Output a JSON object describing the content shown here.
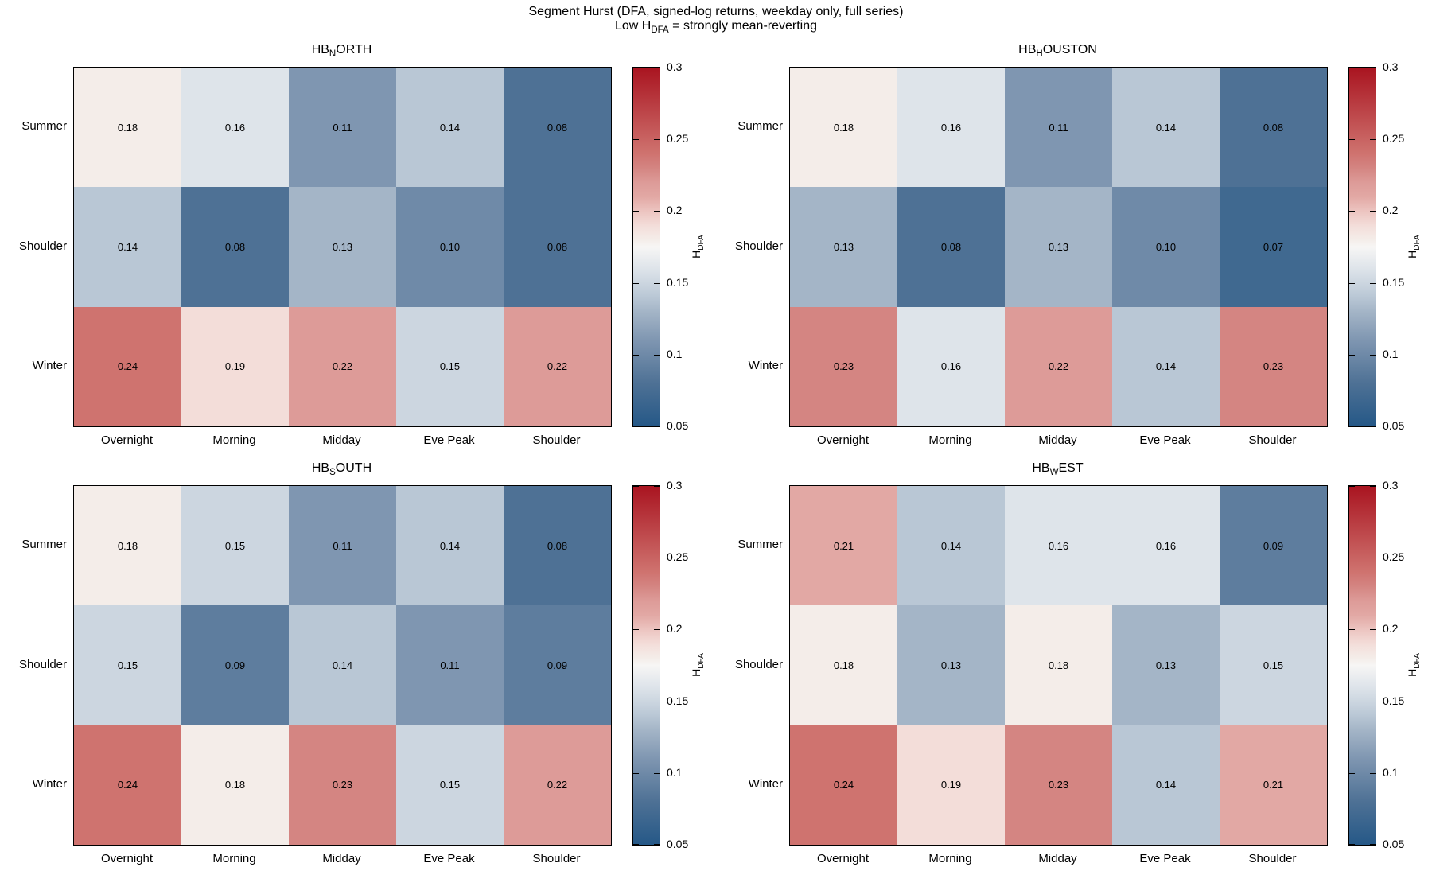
{
  "title": "Segment Hurst (DFA, signed-log returns, weekday only, full series)",
  "subtitle": {
    "prefix": "Low H",
    "sub": "DFA",
    "suffix": " = strongly mean-reverting"
  },
  "colorbar": {
    "axis_label": {
      "main": "H",
      "sub": "DFA"
    },
    "ticks": [
      {
        "value": 0.3,
        "label": "0.3"
      },
      {
        "value": 0.25,
        "label": "0.25"
      },
      {
        "value": 0.2,
        "label": "0.2"
      },
      {
        "value": 0.15,
        "label": "0.15"
      },
      {
        "value": 0.1,
        "label": "0.1"
      },
      {
        "value": 0.05,
        "label": "0.05"
      }
    ]
  },
  "palette": {
    "description": "diverging blue-white-red, low=mean-reverting blue, high=red",
    "stops": [
      {
        "t": 0.0,
        "color": "#255887"
      },
      {
        "t": 0.12,
        "color": "#4e7195"
      },
      {
        "t": 0.24,
        "color": "#7f96b1"
      },
      {
        "t": 0.32,
        "color": "#a4b5c7"
      },
      {
        "t": 0.36,
        "color": "#b9c7d5"
      },
      {
        "t": 0.4,
        "color": "#ccd6e0"
      },
      {
        "t": 0.44,
        "color": "#dee4ea"
      },
      {
        "t": 0.5,
        "color": "#f7f6f5"
      },
      {
        "t": 0.52,
        "color": "#f4ede9"
      },
      {
        "t": 0.56,
        "color": "#f3ddd9"
      },
      {
        "t": 0.6,
        "color": "#ecc4c0"
      },
      {
        "t": 0.64,
        "color": "#e2a8a4"
      },
      {
        "t": 0.68,
        "color": "#dd9b98"
      },
      {
        "t": 0.72,
        "color": "#d48582"
      },
      {
        "t": 0.76,
        "color": "#cf736f"
      },
      {
        "t": 1.0,
        "color": "#a91420"
      }
    ]
  },
  "chart_data": {
    "type": "heatmap",
    "vmin": 0.05,
    "vmax": 0.3,
    "rows": [
      "Summer",
      "Shoulder",
      "Winter"
    ],
    "columns": [
      "Overnight",
      "Morning",
      "Midday",
      "Eve Peak",
      "Shoulder"
    ],
    "value_format_decimals": 2,
    "panels": [
      {
        "id": "hb-north",
        "title_prefix": "HB",
        "title_sub": "N",
        "title_suffix": "ORTH",
        "values": [
          [
            0.18,
            0.16,
            0.11,
            0.14,
            0.08
          ],
          [
            0.14,
            0.08,
            0.13,
            0.1,
            0.08
          ],
          [
            0.24,
            0.19,
            0.22,
            0.15,
            0.22
          ]
        ]
      },
      {
        "id": "hb-houston",
        "title_prefix": "HB",
        "title_sub": "H",
        "title_suffix": "OUSTON",
        "values": [
          [
            0.18,
            0.16,
            0.11,
            0.14,
            0.08
          ],
          [
            0.13,
            0.08,
            0.13,
            0.1,
            0.07
          ],
          [
            0.23,
            0.16,
            0.22,
            0.14,
            0.23
          ]
        ]
      },
      {
        "id": "hb-south",
        "title_prefix": "HB",
        "title_sub": "S",
        "title_suffix": "OUTH",
        "values": [
          [
            0.18,
            0.15,
            0.11,
            0.14,
            0.08
          ],
          [
            0.15,
            0.09,
            0.14,
            0.11,
            0.09
          ],
          [
            0.24,
            0.18,
            0.23,
            0.15,
            0.22
          ]
        ]
      },
      {
        "id": "hb-west",
        "title_prefix": "HB",
        "title_sub": "W",
        "title_suffix": "EST",
        "values": [
          [
            0.21,
            0.14,
            0.16,
            0.16,
            0.09
          ],
          [
            0.18,
            0.13,
            0.18,
            0.13,
            0.15
          ],
          [
            0.24,
            0.19,
            0.23,
            0.14,
            0.21
          ]
        ]
      }
    ]
  }
}
